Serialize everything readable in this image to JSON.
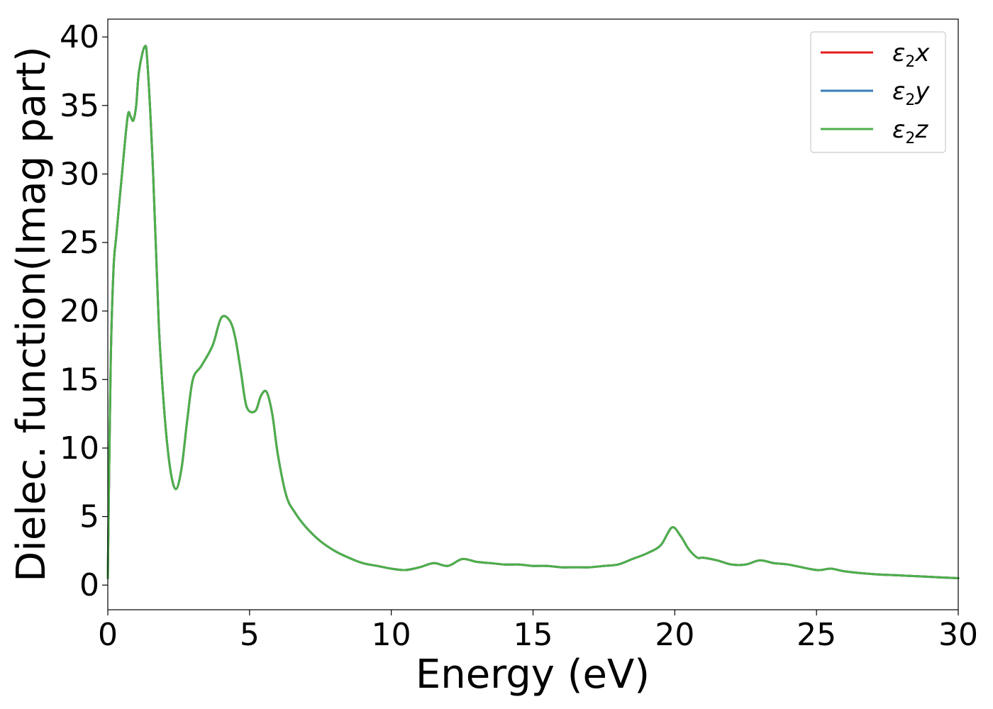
{
  "chart_data": {
    "type": "line",
    "xlabel": "Energy (eV)",
    "ylabel": "Dielec. function(Imag part)",
    "xlim": [
      0,
      30
    ],
    "ylim": [
      -1.8,
      41.3
    ],
    "xticks": [
      0,
      5,
      10,
      15,
      20,
      25,
      30
    ],
    "yticks": [
      0,
      5,
      10,
      15,
      20,
      25,
      30,
      35,
      40
    ],
    "grid": false,
    "legend_position": "top-right",
    "series": [
      {
        "name": "ε2x",
        "legend_base": "ε",
        "legend_sub": "2",
        "legend_tail": "x",
        "color": "#e41a1c",
        "x": [
          0,
          0.1,
          0.2,
          0.3,
          0.5,
          0.7,
          0.8,
          0.9,
          1.0,
          1.1,
          1.3,
          1.4,
          1.6,
          1.8,
          2.0,
          2.2,
          2.4,
          2.6,
          2.8,
          3.0,
          3.3,
          3.7,
          4.0,
          4.3,
          4.5,
          4.7,
          4.9,
          5.2,
          5.4,
          5.6,
          5.8,
          6.0,
          6.3,
          6.6,
          7.0,
          7.5,
          8.0,
          8.5,
          9.0,
          9.5,
          10.0,
          10.5,
          11.0,
          11.5,
          12.0,
          12.5,
          13.0,
          13.5,
          14.0,
          14.5,
          15.0,
          15.5,
          16.0,
          16.5,
          17.0,
          17.5,
          18.0,
          18.5,
          19.0,
          19.5,
          19.9,
          20.2,
          20.5,
          20.8,
          21.0,
          21.5,
          22.0,
          22.5,
          23.0,
          23.5,
          24.0,
          25.0,
          25.5,
          26.0,
          27.0,
          28.0,
          29.0,
          30.0
        ],
        "y": [
          0.5,
          16.0,
          23.0,
          25.5,
          30.0,
          34.2,
          34.2,
          33.9,
          35.0,
          37.5,
          39.3,
          38.0,
          30.0,
          19.0,
          12.5,
          8.5,
          7.0,
          8.5,
          12.0,
          15.0,
          16.0,
          17.5,
          19.5,
          19.3,
          18.0,
          15.5,
          13.0,
          12.7,
          13.8,
          14.1,
          12.5,
          9.5,
          6.5,
          5.3,
          4.2,
          3.2,
          2.5,
          2.0,
          1.6,
          1.4,
          1.2,
          1.1,
          1.3,
          1.6,
          1.4,
          1.9,
          1.7,
          1.6,
          1.5,
          1.5,
          1.4,
          1.4,
          1.3,
          1.3,
          1.3,
          1.4,
          1.5,
          1.9,
          2.3,
          2.9,
          4.2,
          3.6,
          2.6,
          2.0,
          2.0,
          1.8,
          1.5,
          1.5,
          1.8,
          1.6,
          1.5,
          1.1,
          1.2,
          1.0,
          0.8,
          0.7,
          0.6,
          0.5
        ]
      },
      {
        "name": "ε2y",
        "legend_base": "ε",
        "legend_sub": "2",
        "legend_tail": "y",
        "color": "#377eb8",
        "x": [
          0,
          0.1,
          0.2,
          0.3,
          0.5,
          0.7,
          0.8,
          0.9,
          1.0,
          1.1,
          1.3,
          1.4,
          1.6,
          1.8,
          2.0,
          2.2,
          2.4,
          2.6,
          2.8,
          3.0,
          3.3,
          3.7,
          4.0,
          4.3,
          4.5,
          4.7,
          4.9,
          5.2,
          5.4,
          5.6,
          5.8,
          6.0,
          6.3,
          6.6,
          7.0,
          7.5,
          8.0,
          8.5,
          9.0,
          9.5,
          10.0,
          10.5,
          11.0,
          11.5,
          12.0,
          12.5,
          13.0,
          13.5,
          14.0,
          14.5,
          15.0,
          15.5,
          16.0,
          16.5,
          17.0,
          17.5,
          18.0,
          18.5,
          19.0,
          19.5,
          19.9,
          20.2,
          20.5,
          20.8,
          21.0,
          21.5,
          22.0,
          22.5,
          23.0,
          23.5,
          24.0,
          25.0,
          25.5,
          26.0,
          27.0,
          28.0,
          29.0,
          30.0
        ],
        "y": [
          0.5,
          16.0,
          23.0,
          25.5,
          30.0,
          34.2,
          34.2,
          33.9,
          35.0,
          37.5,
          39.3,
          38.0,
          30.0,
          19.0,
          12.5,
          8.5,
          7.0,
          8.5,
          12.0,
          15.0,
          16.0,
          17.5,
          19.5,
          19.3,
          18.0,
          15.5,
          13.0,
          12.7,
          13.8,
          14.1,
          12.5,
          9.5,
          6.5,
          5.3,
          4.2,
          3.2,
          2.5,
          2.0,
          1.6,
          1.4,
          1.2,
          1.1,
          1.3,
          1.6,
          1.4,
          1.9,
          1.7,
          1.6,
          1.5,
          1.5,
          1.4,
          1.4,
          1.3,
          1.3,
          1.3,
          1.4,
          1.5,
          1.9,
          2.3,
          2.9,
          4.2,
          3.6,
          2.6,
          2.0,
          2.0,
          1.8,
          1.5,
          1.5,
          1.8,
          1.6,
          1.5,
          1.1,
          1.2,
          1.0,
          0.8,
          0.7,
          0.6,
          0.5
        ]
      },
      {
        "name": "ε2z",
        "legend_base": "ε",
        "legend_sub": "2",
        "legend_tail": "z",
        "color": "#4daf4a",
        "x": [
          0,
          0.1,
          0.2,
          0.3,
          0.5,
          0.7,
          0.8,
          0.9,
          1.0,
          1.1,
          1.3,
          1.4,
          1.6,
          1.8,
          2.0,
          2.2,
          2.4,
          2.6,
          2.8,
          3.0,
          3.3,
          3.7,
          4.0,
          4.3,
          4.5,
          4.7,
          4.9,
          5.2,
          5.4,
          5.6,
          5.8,
          6.0,
          6.3,
          6.6,
          7.0,
          7.5,
          8.0,
          8.5,
          9.0,
          9.5,
          10.0,
          10.5,
          11.0,
          11.5,
          12.0,
          12.5,
          13.0,
          13.5,
          14.0,
          14.5,
          15.0,
          15.5,
          16.0,
          16.5,
          17.0,
          17.5,
          18.0,
          18.5,
          19.0,
          19.5,
          19.9,
          20.2,
          20.5,
          20.8,
          21.0,
          21.5,
          22.0,
          22.5,
          23.0,
          23.5,
          24.0,
          25.0,
          25.5,
          26.0,
          27.0,
          28.0,
          29.0,
          30.0
        ],
        "y": [
          0.5,
          16.0,
          23.0,
          25.5,
          30.0,
          34.2,
          34.2,
          33.9,
          35.0,
          37.5,
          39.3,
          38.0,
          30.0,
          19.0,
          12.5,
          8.5,
          7.0,
          8.5,
          12.0,
          15.0,
          16.0,
          17.5,
          19.5,
          19.3,
          18.0,
          15.5,
          13.0,
          12.7,
          13.8,
          14.1,
          12.5,
          9.5,
          6.5,
          5.3,
          4.2,
          3.2,
          2.5,
          2.0,
          1.6,
          1.4,
          1.2,
          1.1,
          1.3,
          1.6,
          1.4,
          1.9,
          1.7,
          1.6,
          1.5,
          1.5,
          1.4,
          1.4,
          1.3,
          1.3,
          1.3,
          1.4,
          1.5,
          1.9,
          2.3,
          2.9,
          4.2,
          3.6,
          2.6,
          2.0,
          2.0,
          1.8,
          1.5,
          1.5,
          1.8,
          1.6,
          1.5,
          1.1,
          1.2,
          1.0,
          0.8,
          0.7,
          0.6,
          0.5
        ]
      }
    ]
  }
}
